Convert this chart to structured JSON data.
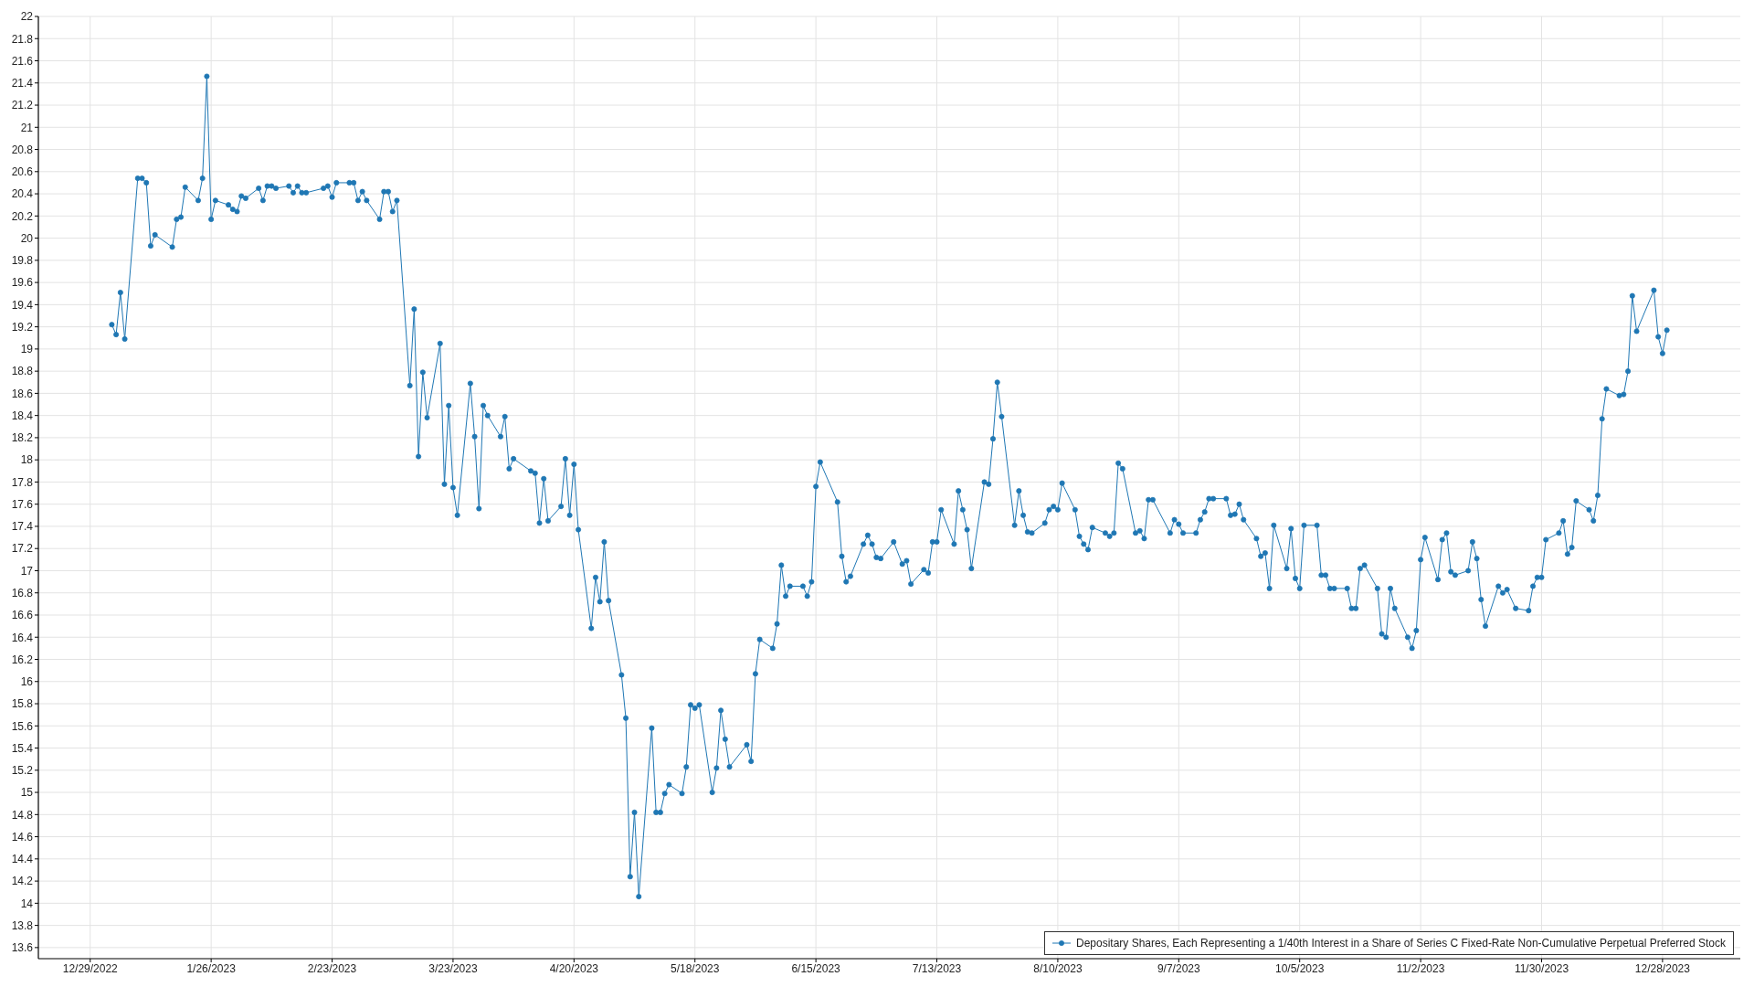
{
  "chart_data": {
    "type": "line",
    "x": [
      "2023-01-03",
      "2023-01-04",
      "2023-01-05",
      "2023-01-06",
      "2023-01-09",
      "2023-01-10",
      "2023-01-11",
      "2023-01-12",
      "2023-01-13",
      "2023-01-17",
      "2023-01-18",
      "2023-01-19",
      "2023-01-20",
      "2023-01-23",
      "2023-01-24",
      "2023-01-25",
      "2023-01-26",
      "2023-01-27",
      "2023-01-30",
      "2023-01-31",
      "2023-02-01",
      "2023-02-02",
      "2023-02-03",
      "2023-02-06",
      "2023-02-07",
      "2023-02-08",
      "2023-02-09",
      "2023-02-10",
      "2023-02-13",
      "2023-02-14",
      "2023-02-15",
      "2023-02-16",
      "2023-02-17",
      "2023-02-21",
      "2023-02-22",
      "2023-02-23",
      "2023-02-24",
      "2023-02-27",
      "2023-02-28",
      "2023-03-01",
      "2023-03-02",
      "2023-03-03",
      "2023-03-06",
      "2023-03-07",
      "2023-03-08",
      "2023-03-09",
      "2023-03-10",
      "2023-03-13",
      "2023-03-14",
      "2023-03-15",
      "2023-03-16",
      "2023-03-17",
      "2023-03-20",
      "2023-03-21",
      "2023-03-22",
      "2023-03-23",
      "2023-03-24",
      "2023-03-27",
      "2023-03-28",
      "2023-03-29",
      "2023-03-30",
      "2023-03-31",
      "2023-04-03",
      "2023-04-04",
      "2023-04-05",
      "2023-04-06",
      "2023-04-10",
      "2023-04-11",
      "2023-04-12",
      "2023-04-13",
      "2023-04-14",
      "2023-04-17",
      "2023-04-18",
      "2023-04-19",
      "2023-04-20",
      "2023-04-21",
      "2023-04-24",
      "2023-04-25",
      "2023-04-26",
      "2023-04-27",
      "2023-04-28",
      "2023-05-01",
      "2023-05-02",
      "2023-05-03",
      "2023-05-04",
      "2023-05-05",
      "2023-05-08",
      "2023-05-09",
      "2023-05-10",
      "2023-05-11",
      "2023-05-12",
      "2023-05-15",
      "2023-05-16",
      "2023-05-17",
      "2023-05-18",
      "2023-05-19",
      "2023-05-22",
      "2023-05-23",
      "2023-05-24",
      "2023-05-25",
      "2023-05-26",
      "2023-05-30",
      "2023-05-31",
      "2023-06-01",
      "2023-06-02",
      "2023-06-05",
      "2023-06-06",
      "2023-06-07",
      "2023-06-08",
      "2023-06-09",
      "2023-06-12",
      "2023-06-13",
      "2023-06-14",
      "2023-06-15",
      "2023-06-16",
      "2023-06-20",
      "2023-06-21",
      "2023-06-22",
      "2023-06-23",
      "2023-06-26",
      "2023-06-27",
      "2023-06-28",
      "2023-06-29",
      "2023-06-30",
      "2023-07-03",
      "2023-07-05",
      "2023-07-06",
      "2023-07-07",
      "2023-07-10",
      "2023-07-11",
      "2023-07-12",
      "2023-07-13",
      "2023-07-14",
      "2023-07-17",
      "2023-07-18",
      "2023-07-19",
      "2023-07-20",
      "2023-07-21",
      "2023-07-24",
      "2023-07-25",
      "2023-07-26",
      "2023-07-27",
      "2023-07-28",
      "2023-07-31",
      "2023-08-01",
      "2023-08-02",
      "2023-08-03",
      "2023-08-04",
      "2023-08-07",
      "2023-08-08",
      "2023-08-09",
      "2023-08-10",
      "2023-08-11",
      "2023-08-14",
      "2023-08-15",
      "2023-08-16",
      "2023-08-17",
      "2023-08-18",
      "2023-08-21",
      "2023-08-22",
      "2023-08-23",
      "2023-08-24",
      "2023-08-25",
      "2023-08-28",
      "2023-08-29",
      "2023-08-30",
      "2023-08-31",
      "2023-09-01",
      "2023-09-05",
      "2023-09-06",
      "2023-09-07",
      "2023-09-08",
      "2023-09-11",
      "2023-09-12",
      "2023-09-13",
      "2023-09-14",
      "2023-09-15",
      "2023-09-18",
      "2023-09-19",
      "2023-09-20",
      "2023-09-21",
      "2023-09-22",
      "2023-09-25",
      "2023-09-26",
      "2023-09-27",
      "2023-09-28",
      "2023-09-29",
      "2023-10-02",
      "2023-10-03",
      "2023-10-04",
      "2023-10-05",
      "2023-10-06",
      "2023-10-09",
      "2023-10-10",
      "2023-10-11",
      "2023-10-12",
      "2023-10-13",
      "2023-10-16",
      "2023-10-17",
      "2023-10-18",
      "2023-10-19",
      "2023-10-20",
      "2023-10-23",
      "2023-10-24",
      "2023-10-25",
      "2023-10-26",
      "2023-10-27",
      "2023-10-30",
      "2023-10-31",
      "2023-11-01",
      "2023-11-02",
      "2023-11-03",
      "2023-11-06",
      "2023-11-07",
      "2023-11-08",
      "2023-11-09",
      "2023-11-10",
      "2023-11-13",
      "2023-11-14",
      "2023-11-15",
      "2023-11-16",
      "2023-11-17",
      "2023-11-20",
      "2023-11-21",
      "2023-11-22",
      "2023-11-24",
      "2023-11-27",
      "2023-11-28",
      "2023-11-29",
      "2023-11-30",
      "2023-12-01",
      "2023-12-04",
      "2023-12-05",
      "2023-12-06",
      "2023-12-07",
      "2023-12-08",
      "2023-12-11",
      "2023-12-12",
      "2023-12-13",
      "2023-12-14",
      "2023-12-15",
      "2023-12-18",
      "2023-12-19",
      "2023-12-20",
      "2023-12-21",
      "2023-12-22",
      "2023-12-26",
      "2023-12-27",
      "2023-12-28",
      "2023-12-29"
    ],
    "series": [
      {
        "name": "Depositary Shares, Each Representing a 1/40th Interest in a Share of Series C Fixed-Rate Non-Cumulative Perpetual Preferred Stock",
        "color": "#1f77b4",
        "values": [
          19.22,
          19.13,
          19.51,
          19.09,
          20.54,
          20.54,
          20.5,
          19.93,
          20.03,
          19.92,
          20.17,
          20.19,
          20.46,
          20.34,
          20.54,
          21.46,
          20.17,
          20.34,
          20.3,
          20.26,
          20.24,
          20.38,
          20.36,
          20.45,
          20.34,
          20.47,
          20.47,
          20.45,
          20.47,
          20.41,
          20.47,
          20.41,
          20.41,
          20.45,
          20.47,
          20.37,
          20.5,
          20.5,
          20.5,
          20.34,
          20.42,
          20.34,
          20.17,
          20.42,
          20.42,
          20.24,
          20.34,
          18.67,
          19.36,
          18.03,
          18.79,
          18.38,
          19.05,
          17.78,
          18.49,
          17.75,
          17.5,
          18.69,
          18.21,
          17.56,
          18.49,
          18.4,
          18.21,
          18.39,
          17.92,
          18.01,
          17.9,
          17.88,
          17.43,
          17.83,
          17.45,
          17.58,
          18.01,
          17.5,
          17.96,
          17.37,
          16.48,
          16.94,
          16.72,
          17.26,
          16.73,
          16.06,
          15.67,
          14.24,
          14.82,
          14.06,
          15.58,
          14.82,
          14.82,
          14.99,
          15.07,
          14.99,
          15.23,
          15.79,
          15.76,
          15.79,
          15,
          15.22,
          15.74,
          15.48,
          15.23,
          15.43,
          15.28,
          16.07,
          16.38,
          16.3,
          16.52,
          17.05,
          16.77,
          16.86,
          16.86,
          16.77,
          16.9,
          17.76,
          17.98,
          17.62,
          17.13,
          16.9,
          16.95,
          17.24,
          17.32,
          17.24,
          17.12,
          17.11,
          17.26,
          17.06,
          17.09,
          16.88,
          17.01,
          16.98,
          17.26,
          17.26,
          17.55,
          17.24,
          17.72,
          17.55,
          17.37,
          17.02,
          17.8,
          17.78,
          18.19,
          18.7,
          18.39,
          17.41,
          17.72,
          17.5,
          17.35,
          17.34,
          17.43,
          17.55,
          17.58,
          17.55,
          17.79,
          17.55,
          17.31,
          17.24,
          17.19,
          17.39,
          17.34,
          17.31,
          17.34,
          17.97,
          17.92,
          17.34,
          17.36,
          17.29,
          17.64,
          17.64,
          17.34,
          17.46,
          17.42,
          17.34,
          17.34,
          17.46,
          17.53,
          17.65,
          17.65,
          17.65,
          17.5,
          17.51,
          17.6,
          17.46,
          17.29,
          17.13,
          17.16,
          16.84,
          17.41,
          17.02,
          17.38,
          16.93,
          16.84,
          17.41,
          17.41,
          16.96,
          16.96,
          16.84,
          16.84,
          16.84,
          16.66,
          16.66,
          17.02,
          17.05,
          16.84,
          16.43,
          16.4,
          16.84,
          16.66,
          16.4,
          16.3,
          16.46,
          17.1,
          17.3,
          16.92,
          17.28,
          17.34,
          16.99,
          16.96,
          17,
          17.26,
          17.11,
          16.74,
          16.5,
          16.86,
          16.8,
          16.83,
          16.66,
          16.64,
          16.86,
          16.94,
          16.94,
          17.28,
          17.34,
          17.45,
          17.15,
          17.21,
          17.63,
          17.55,
          17.45,
          17.68,
          18.37,
          18.64,
          18.58,
          18.59,
          18.8,
          19.48,
          19.16,
          19.53,
          19.11,
          18.96,
          19.17
        ]
      }
    ],
    "xlim": [
      "2022-12-17",
      "2024-01-15"
    ],
    "xticks": [
      {
        "value": "2022-12-29",
        "label": "12/29/2022"
      },
      {
        "value": "2023-01-26",
        "label": "1/26/2023"
      },
      {
        "value": "2023-02-23",
        "label": "2/23/2023"
      },
      {
        "value": "2023-03-23",
        "label": "3/23/2023"
      },
      {
        "value": "2023-04-20",
        "label": "4/20/2023"
      },
      {
        "value": "2023-05-18",
        "label": "5/18/2023"
      },
      {
        "value": "2023-06-15",
        "label": "6/15/2023"
      },
      {
        "value": "2023-07-13",
        "label": "7/13/2023"
      },
      {
        "value": "2023-08-10",
        "label": "8/10/2023"
      },
      {
        "value": "2023-09-07",
        "label": "9/7/2023"
      },
      {
        "value": "2023-10-05",
        "label": "10/5/2023"
      },
      {
        "value": "2023-11-02",
        "label": "11/2/2023"
      },
      {
        "value": "2023-11-30",
        "label": "11/30/2023"
      },
      {
        "value": "2023-12-28",
        "label": "12/28/2023"
      }
    ],
    "ylim": [
      13.5,
      22
    ],
    "yticks": [
      13.6,
      13.8,
      14,
      14.2,
      14.4,
      14.6,
      14.8,
      15,
      15.2,
      15.4,
      15.6,
      15.8,
      16,
      16.2,
      16.4,
      16.6,
      16.8,
      17,
      17.2,
      17.4,
      17.6,
      17.8,
      18,
      18.2,
      18.4,
      18.6,
      18.8,
      19,
      19.2,
      19.4,
      19.6,
      19.8,
      20,
      20.2,
      20.4,
      20.6,
      20.8,
      21,
      21.2,
      21.4,
      21.6,
      21.8,
      22
    ],
    "grid": true,
    "legend": "bottom right",
    "marker": "circle",
    "line_style": "solid"
  }
}
